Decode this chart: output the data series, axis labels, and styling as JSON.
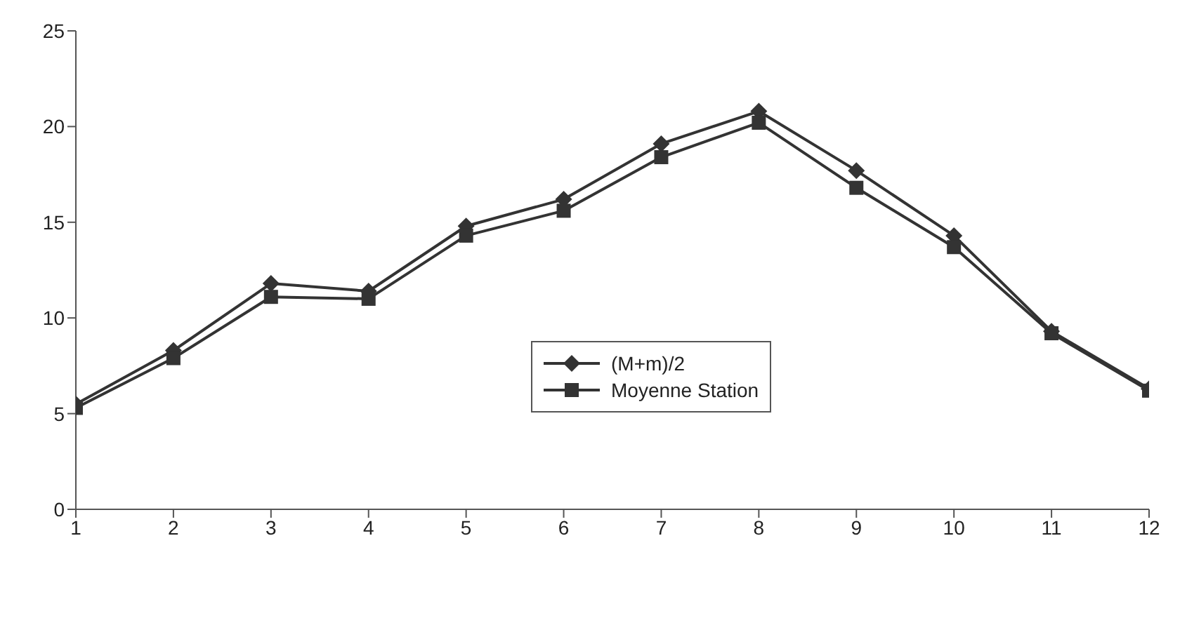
{
  "chart_data": {
    "type": "line",
    "x": [
      1,
      2,
      3,
      4,
      5,
      6,
      7,
      8,
      9,
      10,
      11,
      12
    ],
    "xlim": [
      1,
      12
    ],
    "xticks": [
      1,
      2,
      3,
      4,
      5,
      6,
      7,
      8,
      9,
      10,
      11,
      12
    ],
    "ylim": [
      0,
      25
    ],
    "yticks": [
      0,
      5,
      10,
      15,
      20,
      25
    ],
    "grid": false,
    "legend": "center",
    "line_style": "solid",
    "series": [
      {
        "name": "(M+m)/2",
        "color": "#333333",
        "marker": "diamond",
        "values": [
          5.5,
          8.3,
          11.8,
          11.4,
          14.8,
          16.2,
          19.1,
          20.8,
          17.7,
          14.3,
          9.3,
          6.3
        ]
      },
      {
        "name": "Moyenne Station",
        "color": "#333333",
        "marker": "square",
        "values": [
          5.3,
          7.9,
          11.1,
          11.0,
          14.3,
          15.6,
          18.4,
          20.2,
          16.8,
          13.7,
          9.2,
          6.2
        ]
      }
    ]
  }
}
